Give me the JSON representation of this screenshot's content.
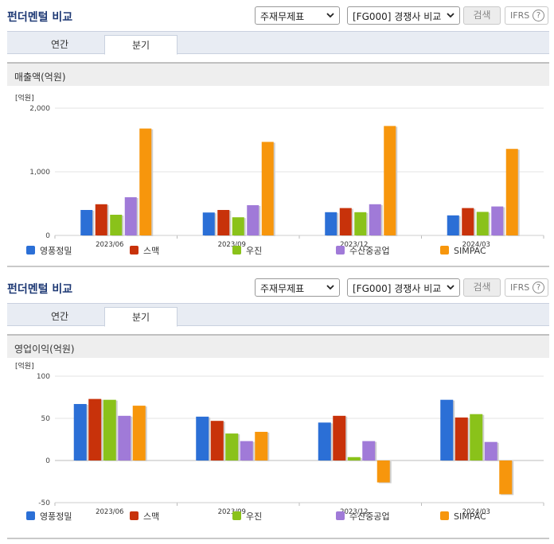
{
  "panels": [
    {
      "title": "펀더멘털 비교",
      "statement_select": "주재무제표",
      "compare_select": "[FG000] 경쟁사 비교",
      "search_label": "검색",
      "ifrs_label": "IFRS",
      "help_label": "?",
      "tabs": [
        {
          "label": "연간",
          "active": false
        },
        {
          "label": "분기",
          "active": true
        }
      ],
      "chart_title": "매출액(억원)"
    },
    {
      "title": "펀더멘털 비교",
      "statement_select": "주재무제표",
      "compare_select": "[FG000] 경쟁사 비교",
      "search_label": "검색",
      "ifrs_label": "IFRS",
      "help_label": "?",
      "tabs": [
        {
          "label": "연간",
          "active": false
        },
        {
          "label": "분기",
          "active": true
        }
      ],
      "chart_title": "영업이익(억원)"
    }
  ],
  "chart_data": [
    {
      "type": "bar",
      "title": "매출액(억원)",
      "unit": "[억원]",
      "categories": [
        "2023/06",
        "2023/09",
        "2023/12",
        "2024/03"
      ],
      "ylim": [
        0,
        2000
      ],
      "yticks": [
        0,
        1000,
        2000
      ],
      "ytick_labels": [
        "0",
        "1,000",
        "2,000"
      ],
      "grid": true,
      "legend_position": "bottom",
      "series": [
        {
          "name": "영풍정밀",
          "color": "#2b6fd6",
          "values": [
            400,
            360,
            365,
            315
          ]
        },
        {
          "name": "스맥",
          "color": "#c8320a",
          "values": [
            490,
            400,
            430,
            430
          ]
        },
        {
          "name": "우진",
          "color": "#8ac21a",
          "values": [
            325,
            285,
            365,
            370
          ]
        },
        {
          "name": "수산중공업",
          "color": "#a07ad8",
          "values": [
            600,
            475,
            490,
            455
          ]
        },
        {
          "name": "SIMPAC",
          "color": "#f7960c",
          "values": [
            1680,
            1470,
            1720,
            1360
          ]
        }
      ]
    },
    {
      "type": "bar",
      "title": "영업이익(억원)",
      "unit": "[억원]",
      "categories": [
        "2023/06",
        "2023/09",
        "2023/12",
        "2024/03"
      ],
      "ylim": [
        -50,
        100
      ],
      "yticks": [
        -50,
        0,
        50,
        100
      ],
      "ytick_labels": [
        "-50",
        "0",
        "50",
        "100"
      ],
      "grid": true,
      "legend_position": "bottom",
      "series": [
        {
          "name": "영풍정밀",
          "color": "#2b6fd6",
          "values": [
            67,
            52,
            45,
            72
          ]
        },
        {
          "name": "스맥",
          "color": "#c8320a",
          "values": [
            73,
            47,
            53,
            51
          ]
        },
        {
          "name": "우진",
          "color": "#8ac21a",
          "values": [
            72,
            32,
            4,
            55
          ]
        },
        {
          "name": "수산중공업",
          "color": "#a07ad8",
          "values": [
            53,
            23,
            23,
            22
          ]
        },
        {
          "name": "SIMPAC",
          "color": "#f7960c",
          "values": [
            65,
            34,
            -26,
            -40
          ]
        }
      ]
    }
  ]
}
